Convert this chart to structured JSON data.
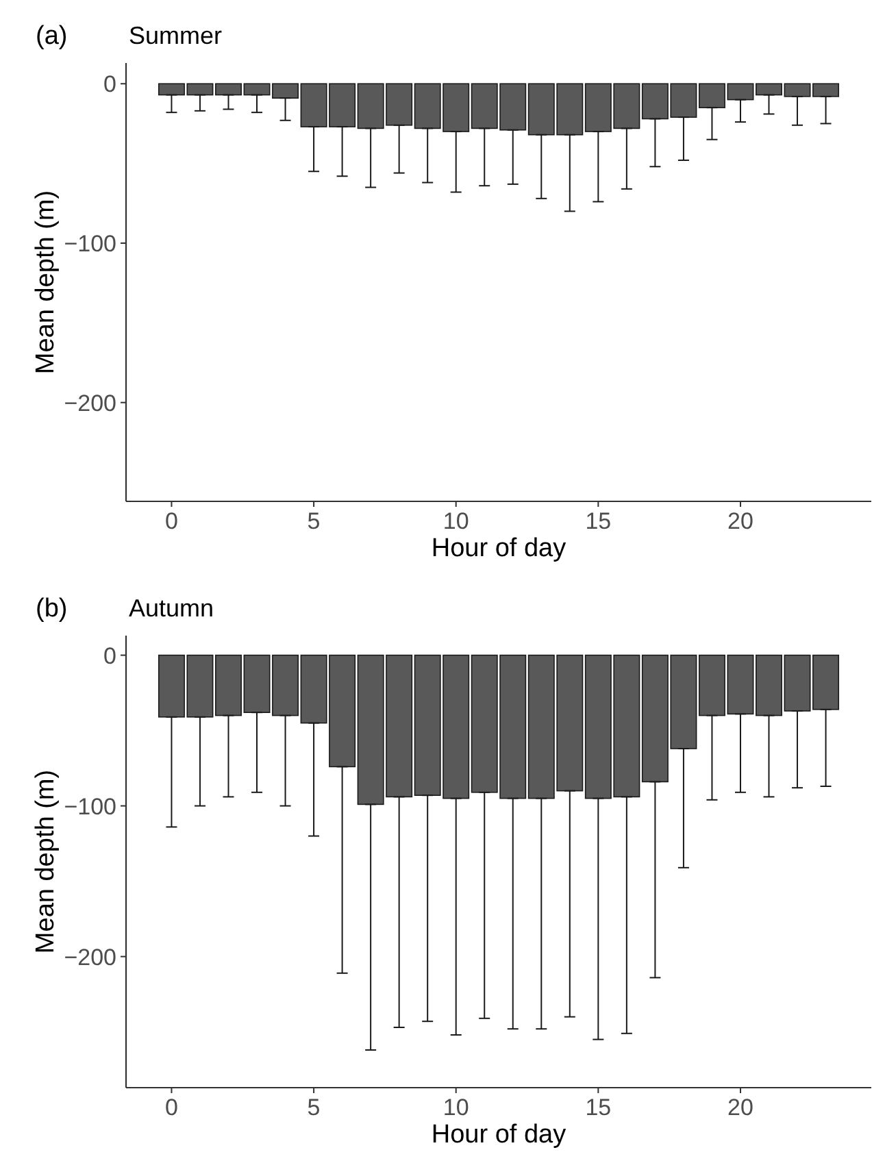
{
  "chart_data": [
    {
      "type": "bar",
      "title": "Summer",
      "annotations": [
        "(a)"
      ],
      "xlabel": "Hour of day",
      "ylabel": "Mean depth (m)",
      "color": "#595959",
      "x": [
        0,
        1,
        2,
        3,
        4,
        5,
        6,
        7,
        8,
        9,
        10,
        11,
        12,
        13,
        14,
        15,
        16,
        17,
        18,
        19,
        20,
        21,
        22,
        23
      ],
      "values": [
        -7,
        -7,
        -7,
        -7,
        -9,
        -27,
        -27,
        -28,
        -26,
        -28,
        -30,
        -28,
        -29,
        -32,
        -32,
        -30,
        -28,
        -22,
        -21,
        -15,
        -10,
        -7,
        -8,
        -8
      ],
      "errors": [
        [
          -18,
          -7
        ],
        [
          -17,
          -7
        ],
        [
          -16,
          -7
        ],
        [
          -18,
          -7
        ],
        [
          -23,
          -9
        ],
        [
          -55,
          -27
        ],
        [
          -58,
          -27
        ],
        [
          -65,
          -28
        ],
        [
          -56,
          -26
        ],
        [
          -62,
          -28
        ],
        [
          -68,
          -30
        ],
        [
          -64,
          -28
        ],
        [
          -63,
          -29
        ],
        [
          -72,
          -32
        ],
        [
          -80,
          -32
        ],
        [
          -74,
          -30
        ],
        [
          -66,
          -28
        ],
        [
          -52,
          -22
        ],
        [
          -48,
          -21
        ],
        [
          -35,
          -15
        ],
        [
          -24,
          -10
        ],
        [
          -19,
          -7
        ],
        [
          -26,
          -8
        ],
        [
          -25,
          -8
        ]
      ],
      "xlim": [
        -1.6,
        24.6
      ],
      "xticks": [
        0,
        5,
        10,
        15,
        20
      ],
      "ylim": [
        -262,
        13
      ],
      "yticks": [
        0,
        -100,
        -200
      ],
      "grid": false
    },
    {
      "type": "bar",
      "title": "Autumn",
      "annotations": [
        "(b)"
      ],
      "xlabel": "Hour of day",
      "ylabel": "Mean depth (m)",
      "color": "#595959",
      "x": [
        0,
        1,
        2,
        3,
        4,
        5,
        6,
        7,
        8,
        9,
        10,
        11,
        12,
        13,
        14,
        15,
        16,
        17,
        18,
        19,
        20,
        21,
        22,
        23
      ],
      "values": [
        -41,
        -41,
        -40,
        -38,
        -40,
        -45,
        -74,
        -99,
        -94,
        -93,
        -95,
        -91,
        -95,
        -95,
        -90,
        -95,
        -94,
        -84,
        -62,
        -40,
        -39,
        -40,
        -37,
        -36
      ],
      "errors": [
        [
          -114,
          -41
        ],
        [
          -100,
          -41
        ],
        [
          -94,
          -40
        ],
        [
          -91,
          -38
        ],
        [
          -100,
          -40
        ],
        [
          -120,
          -45
        ],
        [
          -211,
          -74
        ],
        [
          -262,
          -99
        ],
        [
          -247,
          -94
        ],
        [
          -243,
          -93
        ],
        [
          -252,
          -95
        ],
        [
          -241,
          -91
        ],
        [
          -248,
          -95
        ],
        [
          -248,
          -95
        ],
        [
          -240,
          -90
        ],
        [
          -255,
          -95
        ],
        [
          -251,
          -94
        ],
        [
          -214,
          -84
        ],
        [
          -141,
          -62
        ],
        [
          -96,
          -40
        ],
        [
          -91,
          -39
        ],
        [
          -94,
          -40
        ],
        [
          -88,
          -37
        ],
        [
          -87,
          -36
        ]
      ],
      "xlim": [
        -1.6,
        24.6
      ],
      "xticks": [
        0,
        5,
        10,
        15,
        20
      ],
      "ylim": [
        -287,
        13
      ],
      "yticks": [
        0,
        -100,
        -200
      ],
      "grid": false
    }
  ]
}
